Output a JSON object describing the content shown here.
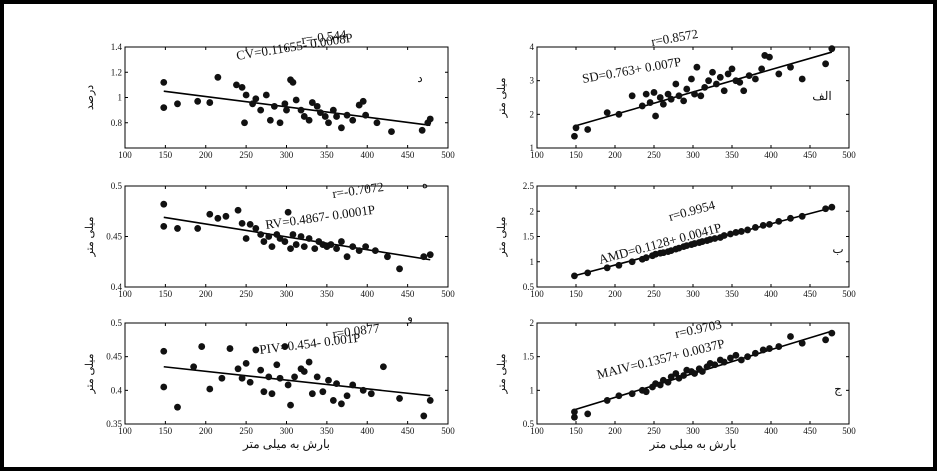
{
  "chart_data": [
    {
      "id": "d",
      "type": "scatter",
      "panel_label": "د",
      "ylabel": "درصد",
      "xlabel": "",
      "xlim": [
        100,
        500
      ],
      "ylim": [
        0.6,
        1.4
      ],
      "xticks": [
        100,
        150,
        200,
        250,
        300,
        350,
        400,
        450,
        500
      ],
      "yticks": [
        0.6,
        0.8,
        1,
        1.2,
        1.4
      ],
      "ytick_labels": [
        "",
        "0.8",
        "1",
        "1.2",
        "1.4"
      ],
      "fit": [
        [
          148,
          1.05
        ],
        [
          478,
          0.78
        ]
      ],
      "equation": "CV=0.11655- 0.0008P",
      "r": "r=-0.544",
      "points": [
        [
          148,
          1.12
        ],
        [
          148,
          0.92
        ],
        [
          165,
          0.95
        ],
        [
          190,
          0.97
        ],
        [
          205,
          0.96
        ],
        [
          215,
          1.16
        ],
        [
          238,
          1.1
        ],
        [
          245,
          1.08
        ],
        [
          250,
          1.02
        ],
        [
          248,
          0.8
        ],
        [
          258,
          0.95
        ],
        [
          262,
          0.99
        ],
        [
          268,
          0.9
        ],
        [
          275,
          1.02
        ],
        [
          280,
          0.82
        ],
        [
          285,
          0.93
        ],
        [
          292,
          0.8
        ],
        [
          298,
          0.95
        ],
        [
          300,
          0.9
        ],
        [
          305,
          1.14
        ],
        [
          308,
          1.12
        ],
        [
          312,
          0.98
        ],
        [
          318,
          0.9
        ],
        [
          322,
          0.85
        ],
        [
          328,
          0.82
        ],
        [
          332,
          0.96
        ],
        [
          338,
          0.93
        ],
        [
          342,
          0.88
        ],
        [
          348,
          0.85
        ],
        [
          352,
          0.8
        ],
        [
          358,
          0.9
        ],
        [
          362,
          0.85
        ],
        [
          368,
          0.76
        ],
        [
          375,
          0.86
        ],
        [
          382,
          0.82
        ],
        [
          390,
          0.94
        ],
        [
          395,
          0.97
        ],
        [
          398,
          0.86
        ],
        [
          412,
          0.8
        ],
        [
          430,
          0.73
        ],
        [
          468,
          0.74
        ],
        [
          475,
          0.8
        ],
        [
          478,
          0.83
        ]
      ]
    },
    {
      "id": "alef",
      "type": "scatter",
      "panel_label": "الف",
      "ylabel": "میلی متر",
      "xlabel": "",
      "xlim": [
        100,
        500
      ],
      "ylim": [
        1,
        4
      ],
      "xticks": [
        100,
        150,
        200,
        250,
        300,
        350,
        400,
        450,
        500
      ],
      "yticks": [
        1,
        2,
        3,
        4
      ],
      "ytick_labels": [
        "1",
        "2",
        "3",
        "4"
      ],
      "fit": [
        [
          148,
          1.65
        ],
        [
          478,
          3.85
        ]
      ],
      "equation": "SD=0.763+ 0.007P",
      "r": "r=0.8572",
      "points": [
        [
          148,
          1.35
        ],
        [
          150,
          1.6
        ],
        [
          165,
          1.55
        ],
        [
          190,
          2.05
        ],
        [
          205,
          2.0
        ],
        [
          222,
          2.55
        ],
        [
          235,
          2.25
        ],
        [
          240,
          2.6
        ],
        [
          245,
          2.35
        ],
        [
          250,
          2.65
        ],
        [
          252,
          1.95
        ],
        [
          258,
          2.5
        ],
        [
          262,
          2.3
        ],
        [
          268,
          2.6
        ],
        [
          272,
          2.45
        ],
        [
          278,
          2.9
        ],
        [
          282,
          2.55
        ],
        [
          288,
          2.4
        ],
        [
          292,
          2.75
        ],
        [
          298,
          3.05
        ],
        [
          302,
          2.6
        ],
        [
          305,
          3.4
        ],
        [
          310,
          2.55
        ],
        [
          315,
          2.8
        ],
        [
          320,
          3.0
        ],
        [
          325,
          3.25
        ],
        [
          330,
          2.9
        ],
        [
          335,
          3.1
        ],
        [
          340,
          2.7
        ],
        [
          345,
          3.2
        ],
        [
          350,
          3.35
        ],
        [
          355,
          3.0
        ],
        [
          360,
          2.95
        ],
        [
          365,
          2.7
        ],
        [
          372,
          3.15
        ],
        [
          380,
          3.05
        ],
        [
          388,
          3.35
        ],
        [
          392,
          3.75
        ],
        [
          398,
          3.7
        ],
        [
          410,
          3.2
        ],
        [
          425,
          3.4
        ],
        [
          440,
          3.05
        ],
        [
          470,
          3.5
        ],
        [
          478,
          3.95
        ]
      ]
    },
    {
      "id": "h",
      "type": "scatter",
      "panel_label": "ه",
      "ylabel": "میلی متر",
      "xlabel": "",
      "xlim": [
        100,
        500
      ],
      "ylim": [
        0.4,
        0.5
      ],
      "xticks": [
        100,
        150,
        200,
        250,
        300,
        350,
        400,
        450,
        500
      ],
      "yticks": [
        0.4,
        0.45,
        0.5
      ],
      "ytick_labels": [
        "0.4",
        "0.45",
        "0.5"
      ],
      "fit": [
        [
          148,
          0.469
        ],
        [
          478,
          0.427
        ]
      ],
      "equation": "RV=0.4867- 0.0001P",
      "r": "r=-0.7072",
      "points": [
        [
          148,
          0.482
        ],
        [
          148,
          0.46
        ],
        [
          165,
          0.458
        ],
        [
          190,
          0.458
        ],
        [
          205,
          0.472
        ],
        [
          215,
          0.468
        ],
        [
          225,
          0.47
        ],
        [
          240,
          0.476
        ],
        [
          245,
          0.463
        ],
        [
          250,
          0.448
        ],
        [
          255,
          0.462
        ],
        [
          262,
          0.458
        ],
        [
          268,
          0.452
        ],
        [
          272,
          0.445
        ],
        [
          278,
          0.45
        ],
        [
          282,
          0.44
        ],
        [
          288,
          0.452
        ],
        [
          292,
          0.448
        ],
        [
          298,
          0.445
        ],
        [
          302,
          0.474
        ],
        [
          305,
          0.438
        ],
        [
          308,
          0.452
        ],
        [
          312,
          0.442
        ],
        [
          318,
          0.45
        ],
        [
          322,
          0.44
        ],
        [
          328,
          0.448
        ],
        [
          335,
          0.438
        ],
        [
          340,
          0.445
        ],
        [
          345,
          0.442
        ],
        [
          350,
          0.44
        ],
        [
          355,
          0.442
        ],
        [
          362,
          0.438
        ],
        [
          368,
          0.445
        ],
        [
          375,
          0.43
        ],
        [
          382,
          0.44
        ],
        [
          390,
          0.436
        ],
        [
          398,
          0.44
        ],
        [
          410,
          0.436
        ],
        [
          425,
          0.43
        ],
        [
          440,
          0.418
        ],
        [
          470,
          0.43
        ],
        [
          478,
          0.432
        ]
      ]
    },
    {
      "id": "b",
      "type": "scatter",
      "panel_label": "ب",
      "ylabel": "میلی متر",
      "xlabel": "",
      "xlim": [
        100,
        500
      ],
      "ylim": [
        0.5,
        2.5
      ],
      "xticks": [
        100,
        150,
        200,
        250,
        300,
        350,
        400,
        450,
        500
      ],
      "yticks": [
        0.5,
        1,
        1.5,
        2,
        2.5
      ],
      "ytick_labels": [
        "0.5",
        "1",
        "1.5",
        "2",
        "2.5"
      ],
      "fit": [
        [
          145,
          0.71
        ],
        [
          478,
          2.07
        ]
      ],
      "equation": "AMD=0.1128+ 0.0041P",
      "r": "r=0.9954",
      "points": [
        [
          148,
          0.72
        ],
        [
          165,
          0.78
        ],
        [
          190,
          0.88
        ],
        [
          205,
          0.93
        ],
        [
          222,
          1.0
        ],
        [
          235,
          1.05
        ],
        [
          240,
          1.08
        ],
        [
          248,
          1.12
        ],
        [
          252,
          1.15
        ],
        [
          258,
          1.17
        ],
        [
          262,
          1.18
        ],
        [
          268,
          1.2
        ],
        [
          272,
          1.22
        ],
        [
          278,
          1.25
        ],
        [
          282,
          1.27
        ],
        [
          288,
          1.3
        ],
        [
          292,
          1.32
        ],
        [
          298,
          1.34
        ],
        [
          302,
          1.36
        ],
        [
          308,
          1.38
        ],
        [
          312,
          1.4
        ],
        [
          318,
          1.42
        ],
        [
          322,
          1.44
        ],
        [
          328,
          1.46
        ],
        [
          335,
          1.48
        ],
        [
          340,
          1.52
        ],
        [
          348,
          1.55
        ],
        [
          355,
          1.58
        ],
        [
          362,
          1.6
        ],
        [
          370,
          1.63
        ],
        [
          380,
          1.68
        ],
        [
          390,
          1.72
        ],
        [
          398,
          1.74
        ],
        [
          410,
          1.8
        ],
        [
          425,
          1.86
        ],
        [
          440,
          1.9
        ],
        [
          470,
          2.05
        ],
        [
          478,
          2.08
        ]
      ]
    },
    {
      "id": "v",
      "type": "scatter",
      "panel_label": "و",
      "ylabel": "میلی متر",
      "xlabel": "بارش به میلی متر",
      "xlim": [
        100,
        500
      ],
      "ylim": [
        0.35,
        0.5
      ],
      "xticks": [
        100,
        150,
        200,
        250,
        300,
        350,
        400,
        450,
        500
      ],
      "yticks": [
        0.35,
        0.4,
        0.45,
        0.5
      ],
      "ytick_labels": [
        "0.35",
        "0.4",
        "0.45",
        "0.5"
      ],
      "fit": [
        [
          148,
          0.435
        ],
        [
          478,
          0.392
        ]
      ],
      "equation": "PIV=0.454- 0.001P",
      "r": "r=0.0877",
      "points": [
        [
          148,
          0.458
        ],
        [
          148,
          0.405
        ],
        [
          165,
          0.375
        ],
        [
          185,
          0.435
        ],
        [
          195,
          0.465
        ],
        [
          205,
          0.402
        ],
        [
          220,
          0.418
        ],
        [
          230,
          0.462
        ],
        [
          240,
          0.432
        ],
        [
          245,
          0.418
        ],
        [
          250,
          0.44
        ],
        [
          255,
          0.412
        ],
        [
          262,
          0.46
        ],
        [
          268,
          0.43
        ],
        [
          272,
          0.398
        ],
        [
          278,
          0.42
        ],
        [
          282,
          0.395
        ],
        [
          288,
          0.438
        ],
        [
          292,
          0.418
        ],
        [
          298,
          0.465
        ],
        [
          302,
          0.408
        ],
        [
          305,
          0.378
        ],
        [
          310,
          0.42
        ],
        [
          318,
          0.432
        ],
        [
          322,
          0.428
        ],
        [
          328,
          0.442
        ],
        [
          332,
          0.395
        ],
        [
          338,
          0.42
        ],
        [
          345,
          0.398
        ],
        [
          352,
          0.415
        ],
        [
          358,
          0.385
        ],
        [
          362,
          0.41
        ],
        [
          368,
          0.38
        ],
        [
          375,
          0.392
        ],
        [
          382,
          0.408
        ],
        [
          395,
          0.4
        ],
        [
          405,
          0.395
        ],
        [
          420,
          0.435
        ],
        [
          440,
          0.388
        ],
        [
          470,
          0.362
        ],
        [
          478,
          0.385
        ]
      ]
    },
    {
      "id": "j",
      "type": "scatter",
      "panel_label": "ج",
      "ylabel": "میلی متر",
      "xlabel": "بارش به میلی متر",
      "xlim": [
        100,
        500
      ],
      "ylim": [
        0.5,
        2
      ],
      "xticks": [
        100,
        150,
        200,
        250,
        300,
        350,
        400,
        450,
        500
      ],
      "yticks": [
        0.5,
        1,
        1.5,
        2
      ],
      "ytick_labels": [
        "0.5",
        "1",
        "1.5",
        "2"
      ],
      "fit": [
        [
          145,
          0.7
        ],
        [
          478,
          1.88
        ]
      ],
      "equation": "MAIV=0.1357+ 0.0037P",
      "r": "r=0.9703",
      "points": [
        [
          148,
          0.6
        ],
        [
          148,
          0.68
        ],
        [
          165,
          0.65
        ],
        [
          190,
          0.85
        ],
        [
          205,
          0.92
        ],
        [
          222,
          0.95
        ],
        [
          235,
          1.0
        ],
        [
          240,
          0.98
        ],
        [
          248,
          1.05
        ],
        [
          252,
          1.1
        ],
        [
          258,
          1.08
        ],
        [
          262,
          1.15
        ],
        [
          268,
          1.12
        ],
        [
          272,
          1.2
        ],
        [
          278,
          1.25
        ],
        [
          282,
          1.18
        ],
        [
          288,
          1.22
        ],
        [
          292,
          1.3
        ],
        [
          298,
          1.28
        ],
        [
          302,
          1.25
        ],
        [
          308,
          1.32
        ],
        [
          312,
          1.28
        ],
        [
          318,
          1.35
        ],
        [
          322,
          1.4
        ],
        [
          328,
          1.38
        ],
        [
          335,
          1.45
        ],
        [
          340,
          1.42
        ],
        [
          348,
          1.48
        ],
        [
          355,
          1.52
        ],
        [
          362,
          1.45
        ],
        [
          370,
          1.5
        ],
        [
          380,
          1.55
        ],
        [
          390,
          1.6
        ],
        [
          398,
          1.62
        ],
        [
          410,
          1.65
        ],
        [
          425,
          1.8
        ],
        [
          440,
          1.7
        ],
        [
          470,
          1.75
        ],
        [
          478,
          1.85
        ]
      ]
    }
  ]
}
